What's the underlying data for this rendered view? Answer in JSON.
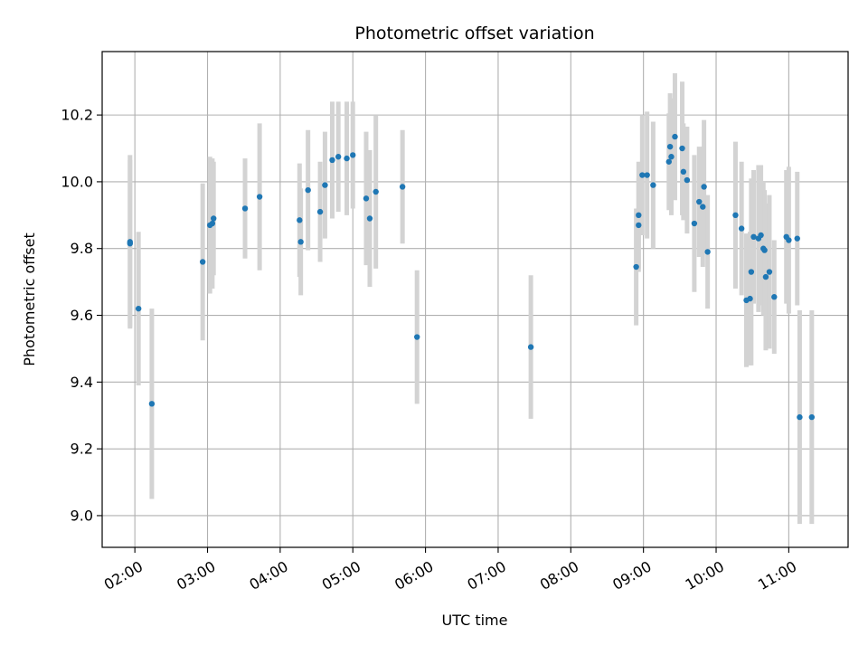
{
  "chart_data": {
    "type": "scatter",
    "title": "Photometric offset variation",
    "xlabel": "UTC time",
    "ylabel": "Photometric offset",
    "grid": true,
    "xlim": [
      "01:33",
      "11:49"
    ],
    "ylim": [
      8.905,
      10.39
    ],
    "x_ticks": [
      "02:00",
      "03:00",
      "04:00",
      "05:00",
      "06:00",
      "07:00",
      "08:00",
      "09:00",
      "10:00",
      "11:00"
    ],
    "y_ticks": [
      "9.0",
      "9.2",
      "9.4",
      "9.6",
      "9.8",
      "10.0",
      "10.2"
    ],
    "colors": {
      "points": "#1f77b4",
      "errorbars": "#d3d3d3",
      "grid": "#b0b0b0"
    },
    "series": [
      {
        "x": [
          "01:56",
          "01:56",
          "02:03",
          "02:14",
          "02:56",
          "03:02",
          "03:04",
          "03:05",
          "03:31",
          "03:43",
          "04:16",
          "04:17",
          "04:23",
          "04:33",
          "04:37",
          "04:43",
          "04:48",
          "04:55",
          "05:00",
          "05:11",
          "05:14",
          "05:19",
          "05:41",
          "05:53",
          "07:27",
          "08:54",
          "08:56",
          "08:56",
          "08:59",
          "09:03",
          "09:08",
          "09:21",
          "09:22",
          "09:23",
          "09:26",
          "09:32",
          "09:33",
          "09:36",
          "09:42",
          "09:46",
          "09:49",
          "09:50",
          "09:53",
          "10:16",
          "10:21",
          "10:25",
          "10:28",
          "10:29",
          "10:31",
          "10:35",
          "10:37",
          "10:39",
          "10:40",
          "10:41",
          "10:44",
          "10:48",
          "10:58",
          "11:00",
          "11:07",
          "11:09",
          "11:19"
        ],
        "y": [
          9.82,
          9.815,
          9.62,
          9.335,
          9.76,
          9.87,
          9.875,
          9.89,
          9.92,
          9.955,
          9.885,
          9.82,
          9.975,
          9.91,
          9.99,
          10.065,
          10.075,
          10.07,
          10.08,
          9.95,
          9.89,
          9.97,
          9.985,
          9.535,
          9.505,
          9.745,
          9.87,
          9.9,
          10.02,
          10.02,
          9.99,
          10.06,
          10.105,
          10.075,
          10.135,
          10.1,
          10.03,
          10.005,
          9.875,
          9.94,
          9.925,
          9.985,
          9.79,
          9.9,
          9.86,
          9.645,
          9.65,
          9.73,
          9.835,
          9.83,
          9.84,
          9.8,
          9.795,
          9.715,
          9.73,
          9.655,
          9.835,
          9.825,
          9.83,
          9.295,
          9.295
        ],
        "yerr": [
          0.26,
          0.25,
          0.23,
          0.285,
          0.235,
          0.205,
          0.195,
          0.17,
          0.15,
          0.22,
          0.17,
          0.16,
          0.18,
          0.15,
          0.16,
          0.175,
          0.165,
          0.17,
          0.16,
          0.2,
          0.205,
          0.23,
          0.17,
          0.2,
          0.215,
          0.175,
          0.14,
          0.16,
          0.18,
          0.19,
          0.19,
          0.145,
          0.16,
          0.175,
          0.19,
          0.2,
          0.145,
          0.16,
          0.205,
          0.165,
          0.18,
          0.2,
          0.17,
          0.22,
          0.2,
          0.2,
          0.2,
          0.28,
          0.2,
          0.22,
          0.21,
          0.2,
          0.18,
          0.22,
          0.23,
          0.17,
          0.2,
          0.22,
          0.2,
          0.32,
          0.32
        ]
      }
    ]
  }
}
